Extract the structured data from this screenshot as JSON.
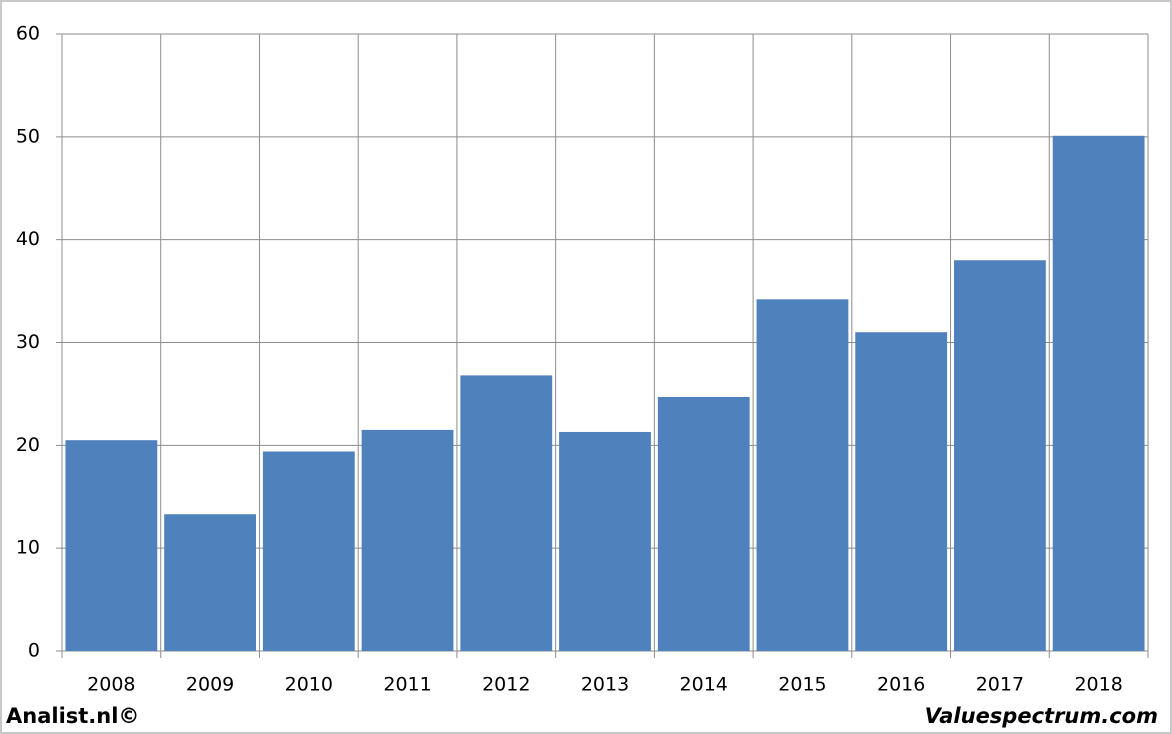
{
  "chart_data": {
    "type": "bar",
    "categories": [
      "2008",
      "2009",
      "2010",
      "2011",
      "2012",
      "2013",
      "2014",
      "2015",
      "2016",
      "2017",
      "2018"
    ],
    "values": [
      20.5,
      13.3,
      19.4,
      21.5,
      26.8,
      21.3,
      24.7,
      34.2,
      31.0,
      38.0,
      50.1
    ],
    "color": "#4f81bd",
    "ylim": [
      0,
      60
    ],
    "yticks": [
      0,
      10,
      20,
      30,
      40,
      50,
      60
    ],
    "grid": true
  },
  "footer": {
    "left": "Analist.nl©",
    "right": "Valuespectrum.com"
  }
}
